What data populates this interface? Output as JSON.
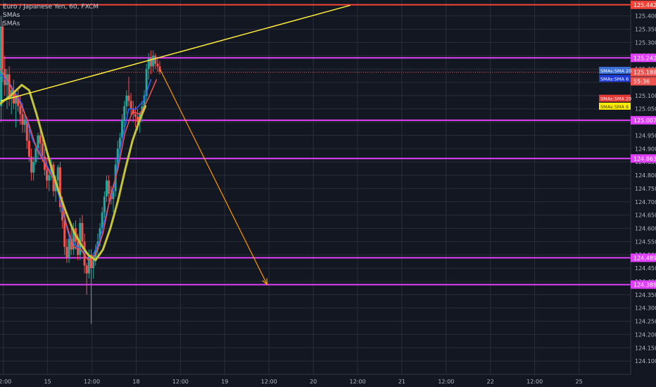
{
  "legend": {
    "title": "Euro / Japanese Yen, 60, FXCM",
    "indicator_1": "SMAs",
    "indicator_2": "SMAs"
  },
  "colors": {
    "background": "#131722",
    "grid": "#2a2e39",
    "candle_up": "#26a69a",
    "candle_down": "#ef5350",
    "level_line": "#e040fb",
    "resistance_line": "#f44336",
    "trend_line": "#ffeb3b",
    "sma20_line": "#c6c43a",
    "sma6_line": "#ef5350",
    "sma6_blue_line": "#2962ff",
    "projection_arrow": "#ff9800",
    "axis_text": "#b2b5be"
  },
  "chart_data": {
    "type": "candlestick",
    "title": "Euro / Japanese Yen, 60, FXCM",
    "ylim": [
      124.05,
      125.46
    ],
    "y_ticks": [
      "125.400",
      "125.350",
      "125.300",
      "125.250",
      "125.200",
      "125.150",
      "125.100",
      "125.050",
      "125.000",
      "124.950",
      "124.900",
      "124.850",
      "124.800",
      "124.750",
      "124.700",
      "124.650",
      "124.600",
      "124.550",
      "124.500",
      "124.450",
      "124.400",
      "124.350",
      "124.300",
      "124.250",
      "124.200",
      "124.150",
      "124.100"
    ],
    "x_ticks": [
      "12:00",
      "15",
      "12:00",
      "18",
      "12:00",
      "19",
      "12:00",
      "20",
      "12:00",
      "21",
      "12:00",
      "22",
      "12:00",
      "25"
    ],
    "x_tick_hours": [
      -6,
      6,
      18,
      30,
      42,
      54,
      66,
      78,
      90,
      102,
      114,
      126,
      138,
      150
    ],
    "x_range_hours": [
      -6.9,
      164
    ],
    "candles": [
      {
        "t": -6.6,
        "o": 125.06,
        "h": 125.4,
        "l": 125.0,
        "c": 125.36
      },
      {
        "t": -6.2,
        "o": 125.36,
        "h": 125.38,
        "l": 125.15,
        "c": 125.2
      },
      {
        "t": -5.6,
        "o": 125.2,
        "h": 125.25,
        "l": 125.1,
        "c": 125.14
      },
      {
        "t": -5.0,
        "o": 125.14,
        "h": 125.2,
        "l": 125.05,
        "c": 125.18
      },
      {
        "t": -4.4,
        "o": 125.18,
        "h": 125.21,
        "l": 125.06,
        "c": 125.09
      },
      {
        "t": -3.8,
        "o": 125.09,
        "h": 125.14,
        "l": 125.03,
        "c": 125.12
      },
      {
        "t": -3.2,
        "o": 125.12,
        "h": 125.16,
        "l": 125.05,
        "c": 125.07
      },
      {
        "t": -2.6,
        "o": 125.07,
        "h": 125.11,
        "l": 124.98,
        "c": 125.1
      },
      {
        "t": -2.0,
        "o": 125.1,
        "h": 125.13,
        "l": 125.04,
        "c": 125.06
      },
      {
        "t": -1.4,
        "o": 125.06,
        "h": 125.1,
        "l": 124.99,
        "c": 125.03
      },
      {
        "t": -0.8,
        "o": 125.03,
        "h": 125.07,
        "l": 124.96,
        "c": 124.99
      },
      {
        "t": -0.2,
        "o": 124.99,
        "h": 125.04,
        "l": 124.96,
        "c": 125.01
      },
      {
        "t": 0.4,
        "o": 125.01,
        "h": 125.02,
        "l": 124.9,
        "c": 124.93
      },
      {
        "t": 1.0,
        "o": 124.93,
        "h": 124.98,
        "l": 124.85,
        "c": 124.87
      },
      {
        "t": 1.6,
        "o": 124.87,
        "h": 124.9,
        "l": 124.78,
        "c": 124.81
      },
      {
        "t": 2.2,
        "o": 124.81,
        "h": 124.87,
        "l": 124.78,
        "c": 124.85
      },
      {
        "t": 2.8,
        "o": 124.85,
        "h": 124.92,
        "l": 124.84,
        "c": 124.9
      },
      {
        "t": 3.4,
        "o": 124.9,
        "h": 124.96,
        "l": 124.86,
        "c": 124.95
      },
      {
        "t": 4.0,
        "o": 124.95,
        "h": 124.99,
        "l": 124.88,
        "c": 124.92
      },
      {
        "t": 4.6,
        "o": 124.92,
        "h": 124.94,
        "l": 124.85,
        "c": 124.87
      },
      {
        "t": 5.2,
        "o": 124.87,
        "h": 124.9,
        "l": 124.8,
        "c": 124.82
      },
      {
        "t": 5.8,
        "o": 124.82,
        "h": 124.86,
        "l": 124.75,
        "c": 124.78
      },
      {
        "t": 6.4,
        "o": 124.78,
        "h": 124.82,
        "l": 124.74,
        "c": 124.8
      },
      {
        "t": 7.0,
        "o": 124.8,
        "h": 124.86,
        "l": 124.78,
        "c": 124.84
      },
      {
        "t": 7.6,
        "o": 124.84,
        "h": 124.85,
        "l": 124.72,
        "c": 124.74
      },
      {
        "t": 8.2,
        "o": 124.74,
        "h": 124.8,
        "l": 124.7,
        "c": 124.78
      },
      {
        "t": 8.8,
        "o": 124.78,
        "h": 124.84,
        "l": 124.74,
        "c": 124.83
      },
      {
        "t": 9.4,
        "o": 124.83,
        "h": 124.85,
        "l": 124.66,
        "c": 124.68
      },
      {
        "t": 10.0,
        "o": 124.68,
        "h": 124.72,
        "l": 124.6,
        "c": 124.63
      },
      {
        "t": 10.6,
        "o": 124.63,
        "h": 124.66,
        "l": 124.5,
        "c": 124.53
      },
      {
        "t": 11.2,
        "o": 124.53,
        "h": 124.56,
        "l": 124.47,
        "c": 124.49
      },
      {
        "t": 11.8,
        "o": 124.49,
        "h": 124.58,
        "l": 124.47,
        "c": 124.56
      },
      {
        "t": 12.4,
        "o": 124.56,
        "h": 124.6,
        "l": 124.5,
        "c": 124.52
      },
      {
        "t": 13.0,
        "o": 124.52,
        "h": 124.62,
        "l": 124.5,
        "c": 124.6
      },
      {
        "t": 13.6,
        "o": 124.6,
        "h": 124.63,
        "l": 124.52,
        "c": 124.55
      },
      {
        "t": 14.2,
        "o": 124.55,
        "h": 124.58,
        "l": 124.48,
        "c": 124.5
      },
      {
        "t": 14.8,
        "o": 124.5,
        "h": 124.64,
        "l": 124.48,
        "c": 124.62
      },
      {
        "t": 15.4,
        "o": 124.62,
        "h": 124.65,
        "l": 124.52,
        "c": 124.55
      },
      {
        "t": 16.0,
        "o": 124.55,
        "h": 124.58,
        "l": 124.43,
        "c": 124.46
      },
      {
        "t": 16.6,
        "o": 124.46,
        "h": 124.47,
        "l": 124.35,
        "c": 124.43
      },
      {
        "t": 17.2,
        "o": 124.43,
        "h": 124.52,
        "l": 124.41,
        "c": 124.5
      },
      {
        "t": 17.8,
        "o": 124.5,
        "h": 124.52,
        "l": 124.24,
        "c": 124.45
      },
      {
        "t": 18.4,
        "o": 124.45,
        "h": 124.5,
        "l": 124.41,
        "c": 124.48
      },
      {
        "t": 19.0,
        "o": 124.48,
        "h": 124.54,
        "l": 124.46,
        "c": 124.52
      },
      {
        "t": 19.6,
        "o": 124.52,
        "h": 124.58,
        "l": 124.5,
        "c": 124.55
      },
      {
        "t": 20.2,
        "o": 124.55,
        "h": 124.62,
        "l": 124.53,
        "c": 124.6
      },
      {
        "t": 20.8,
        "o": 124.6,
        "h": 124.68,
        "l": 124.58,
        "c": 124.66
      },
      {
        "t": 21.4,
        "o": 124.66,
        "h": 124.74,
        "l": 124.64,
        "c": 124.72
      },
      {
        "t": 22.0,
        "o": 124.72,
        "h": 124.8,
        "l": 124.7,
        "c": 124.78
      },
      {
        "t": 22.6,
        "o": 124.78,
        "h": 124.8,
        "l": 124.7,
        "c": 124.73
      },
      {
        "t": 23.2,
        "o": 124.73,
        "h": 124.76,
        "l": 124.69,
        "c": 124.71
      },
      {
        "t": 23.8,
        "o": 124.71,
        "h": 124.75,
        "l": 124.66,
        "c": 124.74
      },
      {
        "t": 24.4,
        "o": 124.74,
        "h": 124.86,
        "l": 124.72,
        "c": 124.84
      },
      {
        "t": 25.0,
        "o": 124.84,
        "h": 124.93,
        "l": 124.82,
        "c": 124.9
      },
      {
        "t": 25.6,
        "o": 124.9,
        "h": 124.96,
        "l": 124.88,
        "c": 124.94
      },
      {
        "t": 26.2,
        "o": 124.94,
        "h": 125.03,
        "l": 124.93,
        "c": 125.01
      },
      {
        "t": 26.8,
        "o": 125.01,
        "h": 125.08,
        "l": 124.98,
        "c": 125.06
      },
      {
        "t": 27.4,
        "o": 125.06,
        "h": 125.12,
        "l": 125.03,
        "c": 125.1
      },
      {
        "t": 28.0,
        "o": 125.1,
        "h": 125.17,
        "l": 125.06,
        "c": 125.08
      },
      {
        "t": 28.6,
        "o": 125.08,
        "h": 125.11,
        "l": 125.02,
        "c": 125.05
      },
      {
        "t": 29.2,
        "o": 125.05,
        "h": 125.08,
        "l": 125.0,
        "c": 125.03
      },
      {
        "t": 29.8,
        "o": 125.03,
        "h": 125.06,
        "l": 124.98,
        "c": 125.02
      },
      {
        "t": 30.4,
        "o": 125.02,
        "h": 125.05,
        "l": 124.97,
        "c": 125.0
      },
      {
        "t": 31.0,
        "o": 125.0,
        "h": 125.04,
        "l": 124.96,
        "c": 125.03
      },
      {
        "t": 31.6,
        "o": 125.03,
        "h": 125.08,
        "l": 125.0,
        "c": 125.06
      },
      {
        "t": 32.2,
        "o": 125.06,
        "h": 125.12,
        "l": 125.04,
        "c": 125.1
      },
      {
        "t": 32.8,
        "o": 125.1,
        "h": 125.22,
        "l": 125.08,
        "c": 125.2
      },
      {
        "t": 33.4,
        "o": 125.2,
        "h": 125.26,
        "l": 125.16,
        "c": 125.24
      },
      {
        "t": 34.0,
        "o": 125.24,
        "h": 125.27,
        "l": 125.18,
        "c": 125.21
      },
      {
        "t": 34.6,
        "o": 125.21,
        "h": 125.27,
        "l": 125.19,
        "c": 125.25
      },
      {
        "t": 35.2,
        "o": 125.25,
        "h": 125.26,
        "l": 125.2,
        "c": 125.22
      },
      {
        "t": 35.8,
        "o": 125.22,
        "h": 125.24,
        "l": 125.19,
        "c": 125.21
      },
      {
        "t": 36.4,
        "o": 125.21,
        "h": 125.23,
        "l": 125.18,
        "c": 125.19
      }
    ],
    "sma20": [
      [
        -6.8,
        125.07
      ],
      [
        -4,
        125.1
      ],
      [
        -1,
        125.14
      ],
      [
        1,
        125.12
      ],
      [
        3,
        125.03
      ],
      [
        5,
        124.93
      ],
      [
        7,
        124.83
      ],
      [
        9,
        124.74
      ],
      [
        11,
        124.66
      ],
      [
        13,
        124.59
      ],
      [
        15,
        124.54
      ],
      [
        17,
        124.5
      ],
      [
        19,
        124.48
      ],
      [
        21,
        124.52
      ],
      [
        23,
        124.6
      ],
      [
        25,
        124.7
      ],
      [
        27,
        124.82
      ],
      [
        29,
        124.93
      ],
      [
        31,
        125.01
      ],
      [
        32.5,
        125.06
      ]
    ],
    "sma6": [
      [
        -6.8,
        125.2
      ],
      [
        -5,
        125.16
      ],
      [
        -3,
        125.11
      ],
      [
        -1,
        125.06
      ],
      [
        1,
        124.99
      ],
      [
        3,
        124.9
      ],
      [
        5,
        124.85
      ],
      [
        7,
        124.8
      ],
      [
        9,
        124.75
      ],
      [
        11,
        124.62
      ],
      [
        13,
        124.53
      ],
      [
        15,
        124.52
      ],
      [
        17,
        124.48
      ],
      [
        19,
        124.5
      ],
      [
        21,
        124.58
      ],
      [
        23,
        124.72
      ],
      [
        25,
        124.82
      ],
      [
        27,
        124.96
      ],
      [
        29,
        125.04
      ],
      [
        31,
        125.03
      ],
      [
        33,
        125.08
      ],
      [
        35.5,
        125.16
      ]
    ],
    "sma6_blue": [
      [
        -6.8,
        125.18
      ],
      [
        -4,
        125.14
      ],
      [
        -1,
        125.07
      ],
      [
        2,
        124.93
      ],
      [
        5,
        124.86
      ],
      [
        8,
        124.78
      ],
      [
        10,
        124.67
      ],
      [
        12,
        124.56
      ],
      [
        14,
        124.53
      ],
      [
        16,
        124.51
      ],
      [
        18,
        124.49
      ],
      [
        20,
        124.55
      ],
      [
        22,
        124.66
      ],
      [
        24,
        124.76
      ],
      [
        26,
        124.92
      ],
      [
        28,
        125.05
      ],
      [
        30,
        125.05
      ],
      [
        32,
        125.08
      ],
      [
        34,
        125.16
      ]
    ],
    "horizontal_levels": [
      {
        "price": 125.442,
        "label": "125.442",
        "color": "#f44336"
      },
      {
        "price": 125.242,
        "label": "125.242",
        "color": "#e040fb"
      },
      {
        "price": 125.007,
        "label": "125.007",
        "color": "#e040fb"
      },
      {
        "price": 124.863,
        "label": "124.863",
        "color": "#e040fb"
      },
      {
        "price": 124.489,
        "label": "124.489",
        "color": "#e040fb"
      },
      {
        "price": 124.388,
        "label": "124.388",
        "color": "#e040fb"
      }
    ],
    "current_price": {
      "price": 125.188,
      "label": "125.188",
      "countdown": "55:36",
      "color": "#ef5350"
    },
    "trend_line": {
      "from": [
        -6.7,
        125.08
      ],
      "to": [
        88,
        125.44
      ]
    },
    "projection_arrow": {
      "from": [
        36.5,
        125.198
      ],
      "to": [
        65.5,
        124.388
      ]
    },
    "right_tags": [
      {
        "price": 125.195,
        "label": "SMAs:SMA 20",
        "bg": "#3b6fd6",
        "fg": "#ffffff"
      },
      {
        "price": 125.165,
        "label": "SMAs:SMA 6",
        "bg": "#1e3bd8",
        "fg": "#ffffff"
      },
      {
        "price": 125.09,
        "label": "SMAs:SMA 20",
        "bg": "#e53935",
        "fg": "#ffffff"
      },
      {
        "price": 125.06,
        "label": "SMAs:SMA 6",
        "bg": "#ffee00",
        "fg": "#333333"
      }
    ]
  }
}
